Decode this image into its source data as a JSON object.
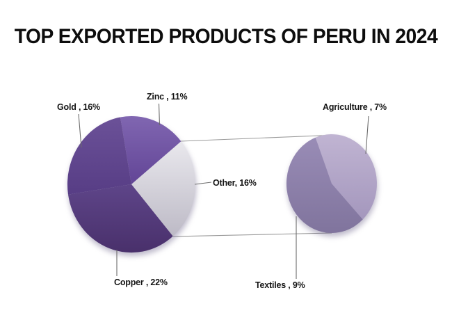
{
  "chart_data": {
    "type": "pie",
    "variant": "pie-of-pie",
    "title": "TOP EXPORTED PRODUCTS OF PERU IN 2024",
    "units": "%",
    "legend": "none",
    "main_pie": {
      "start_angle_deg": -10,
      "slices": [
        {
          "id": "zinc",
          "name": "Zinc",
          "value": 11,
          "label": "Zinc , 11%",
          "color": "#6f53a1"
        },
        {
          "id": "other",
          "name": "Other",
          "value": 16,
          "label": "Other, 16%",
          "color": "#d2d0d9"
        },
        {
          "id": "copper",
          "name": "Copper",
          "value": 22,
          "label": "Copper , 22%",
          "color": "#523a75"
        },
        {
          "id": "gold",
          "name": "Gold",
          "value": 16,
          "label": "Gold , 16%",
          "color": "#62478f"
        }
      ]
    },
    "secondary_pie": {
      "start_angle_deg": -21,
      "slices": [
        {
          "id": "agriculture",
          "name": "Agriculture",
          "value": 7,
          "label": "Agriculture , 7%",
          "color": "#b2a6c8"
        },
        {
          "id": "textiles",
          "name": "Textiles",
          "value": 9,
          "label": "Textiles , 9%",
          "color": "#8c7fa9"
        }
      ]
    }
  }
}
